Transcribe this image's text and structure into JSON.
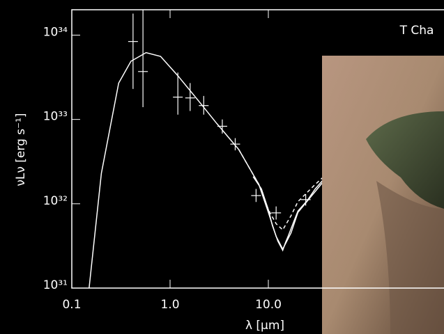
{
  "chart_data": {
    "type": "line",
    "title": "T Cha",
    "x_label": "λ [μm]",
    "y_label": "νLν [erg s⁻¹]",
    "xscale": "log",
    "yscale": "log",
    "xlim": [
      0.1,
      1000
    ],
    "ylim": [
      1e+31,
      2e+34
    ],
    "xticks": [
      0.1,
      {
        "value": 1,
        "label": "1.0"
      },
      {
        "value": 10,
        "label": "10.0"
      }
    ],
    "yticks": [
      {
        "value": 1e+31,
        "label": "10³¹"
      },
      {
        "value": 1e+32,
        "label": "10³²"
      },
      {
        "value": 1e+33,
        "label": "10³³"
      },
      {
        "value": 1e+34,
        "label": "10³⁴"
      }
    ],
    "series": [
      {
        "color": "#ffffff",
        "dash": false,
        "x": [
          0.15,
          0.2,
          0.3,
          0.4,
          0.57,
          0.8,
          1.2,
          2,
          3,
          5,
          8,
          10,
          12,
          14,
          17,
          20,
          30,
          40
        ],
        "values": [
          1e+31,
          2.3e+32,
          2.7e+33,
          4.9e+33,
          6.2e+33,
          5.6e+33,
          3.3e+33,
          1.6e+33,
          8.9e+32,
          4.4e+32,
          1.7e+32,
          7.9e+31,
          4.1e+31,
          2.9e+31,
          4.5e+31,
          7.9e+31,
          1.4e+32,
          2.1e+32
        ]
      },
      {
        "color": "#ffffff",
        "dash": true,
        "x": [
          5,
          8,
          10,
          12,
          14,
          17,
          20,
          30,
          40
        ],
        "values": [
          4.4e+32,
          1.7e+32,
          8.5e+31,
          5.8e+31,
          4.9e+31,
          7.2e+31,
          1.06e+32,
          1.7e+32,
          2.3e+32
        ]
      },
      {
        "color": "#ffffff",
        "dash": false,
        "x": [
          7,
          8.5,
          10,
          11,
          12.5,
          14,
          15,
          16,
          18,
          20,
          25,
          30,
          40
        ],
        "values": [
          2.1e+32,
          1.5e+32,
          8.5e+31,
          5.5e+31,
          3.6e+31,
          2.8e+31,
          3.5e+31,
          4.2e+31,
          6e+31,
          8.2e+31,
          1.1e+32,
          1.5e+32,
          2.2e+32
        ]
      }
    ],
    "points": {
      "color": "#ffffff",
      "x": [
        0.42,
        0.53,
        1.2,
        1.6,
        2.2,
        3.4,
        4.6,
        7.5,
        12,
        24
      ],
      "values": [
        8.4e+33,
        3.7e+33,
        1.84e+33,
        1.8e+33,
        1.46e+33,
        8.3e+32,
        5.1e+32,
        1.25e+32,
        7.8e+31,
        1.12e+32
      ],
      "ylow": [
        2.3e+33,
        1.4e+33,
        1.14e+33,
        1.26e+33,
        1.14e+33,
        6.8e+32,
        4.3e+32,
        1.05e+32,
        6.5e+31,
        9.5e+31
      ],
      "yhigh": [
        1.8e+34,
        2e+34,
        3.6e+33,
        2.7e+33,
        1.9e+33,
        1e+33,
        6e+32,
        1.5e+32,
        9.3e+31,
        1.3e+32
      ]
    }
  }
}
